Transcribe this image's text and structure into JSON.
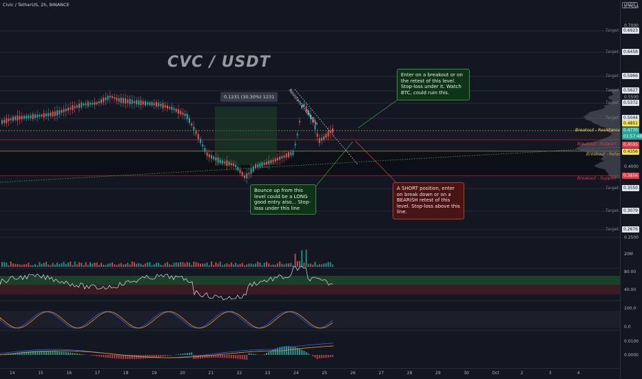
{
  "header": {
    "symbol_line": "Civic / TetherUS, 2h, BINANCE",
    "currency_badge": "USDT"
  },
  "chart_title": "CVC / USDT",
  "measure_label": "0.1231 (30.30%) 1231",
  "trendline_label": "Resistance - trendline",
  "target_label": "Target",
  "targets": [
    "0.6923",
    "0.6458",
    "0.5966",
    "0.5627",
    "0.5372",
    "0.5044",
    "0.3550",
    "0.3079",
    "0.2676"
  ],
  "levels": {
    "breakout_resistance": {
      "label": "Breakout - Resistance",
      "price": "0.4770",
      "color": "#f7e04b"
    },
    "breakout_support_upper": {
      "label": "Breakout - Support",
      "price": "0.4595",
      "color": "#f23645"
    },
    "breakout_retest": {
      "label": "Breakout - Retest",
      "price": "0.4356",
      "color": "#f7e04b"
    },
    "breakout_support_lower": {
      "label": "Breakout - Support",
      "price": "0.3856",
      "color": "#f23645"
    }
  },
  "price_axis": {
    "ticks": [
      "0.7500",
      "0.7000",
      "0.5500",
      "0.4000",
      "0.2500"
    ],
    "tags": {
      "price_0.4851": "0.4851",
      "price_now": "0.4770",
      "countdown": "01:57:48",
      "price_0.4595": "0.4595",
      "price_0.4356": "0.4356",
      "price_0.3856": "0.3856"
    }
  },
  "indicators": {
    "volume_label": "20M",
    "rsi_ticks": [
      "80.00",
      "40.00"
    ],
    "stoch_ticks": [
      "100.0",
      "0.0"
    ],
    "macd_ticks": [
      "0.0100",
      "0.0000"
    ]
  },
  "callouts": {
    "breakout_long": "Enter on a breakout or on the retest of this level. Stop-loss under it. Watch BTC, could ruin this.",
    "bounce_long": "Bounce up from this level could be a LONG good entry also... Stop-loss under this line",
    "short": "A SHORT position, enter on break down or on a BEARISH retest of this level. Stop-loss above this line."
  },
  "time_axis": [
    "14",
    "15",
    "16",
    "17",
    "18",
    "19",
    "20",
    "21",
    "22",
    "23",
    "24",
    "25",
    "26",
    "27",
    "28",
    "29",
    "30",
    "Oct",
    "2",
    "3",
    "4"
  ],
  "colors": {
    "background": "#131722",
    "up_candle": "#26a69a",
    "down_candle": "#ef5350",
    "green_callout": "#123a1a",
    "red_callout": "#4a1414"
  }
}
